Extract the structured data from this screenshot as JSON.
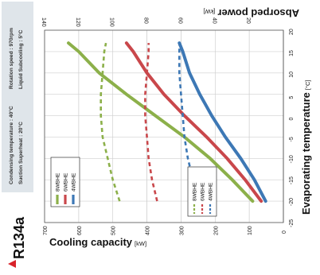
{
  "model": {
    "name": "R134a",
    "marker_color": "#d8232a"
  },
  "conditions": {
    "condensing": "Condensing temperature : 40°C",
    "superheat": "Suction Superheat : 20°C",
    "rotation": "Rotation speed : 970rpm",
    "subcooling": "Liquid Subcooling : 5°C"
  },
  "chart_data": {
    "type": "line",
    "x_axis": {
      "label": "Evaporating temperature",
      "unit": "[°C]",
      "range": [
        -25,
        20
      ],
      "ticks": [
        -25,
        -20,
        -15,
        -10,
        -5,
        0,
        5,
        10,
        15,
        20
      ]
    },
    "cooling_axis": {
      "label": "Cooling capacity",
      "unit": "[kW]",
      "range": [
        0,
        700
      ],
      "ticks": [
        0,
        100,
        200,
        300,
        400,
        500,
        600,
        700
      ]
    },
    "power_axis": {
      "label": "Absorped power",
      "unit": "[kW]",
      "range": [
        0,
        140
      ],
      "ticks": [
        0,
        20,
        40,
        60,
        80,
        100,
        120,
        140
      ]
    },
    "grid": true,
    "cooling_series": [
      {
        "name": "8WBHE",
        "color": "#8cb04a",
        "x": [
          -20,
          -15,
          -10,
          -5,
          0,
          5,
          10,
          15,
          17
        ],
        "y": [
          90,
          150,
          215,
          290,
          375,
          460,
          540,
          600,
          630
        ]
      },
      {
        "name": "6WBHE",
        "color": "#c9474b",
        "x": [
          -20,
          -15,
          -10,
          -5,
          0,
          5,
          10,
          15,
          17
        ],
        "y": [
          65,
          112,
          165,
          225,
          290,
          350,
          400,
          440,
          460
        ]
      },
      {
        "name": "4WBHE",
        "color": "#3d78b5",
        "x": [
          -20,
          -15,
          -10,
          -5,
          0,
          5,
          10,
          15,
          17
        ],
        "y": [
          52,
          85,
          125,
          170,
          210,
          245,
          275,
          295,
          305
        ]
      }
    ],
    "power_series": [
      {
        "name": "8WBHE",
        "color": "#8cb04a",
        "x": [
          -20,
          -15,
          -10,
          -5,
          0,
          5,
          10,
          15,
          17
        ],
        "y": [
          96,
          100,
          103,
          106,
          107,
          107,
          106,
          105,
          104
        ]
      },
      {
        "name": "6WBHE",
        "color": "#c9474b",
        "x": [
          -20,
          -15,
          -10,
          -5,
          0,
          5,
          10,
          15,
          17
        ],
        "y": [
          74,
          77,
          79,
          80,
          81,
          81,
          80,
          79,
          79
        ]
      },
      {
        "name": "4WBHE",
        "color": "#3d78b5",
        "x": [
          -20,
          -15,
          -10,
          -5,
          0,
          5,
          10,
          15,
          17
        ],
        "y": [
          50,
          53,
          56,
          58,
          59,
          60,
          61,
          61,
          61
        ]
      }
    ]
  }
}
